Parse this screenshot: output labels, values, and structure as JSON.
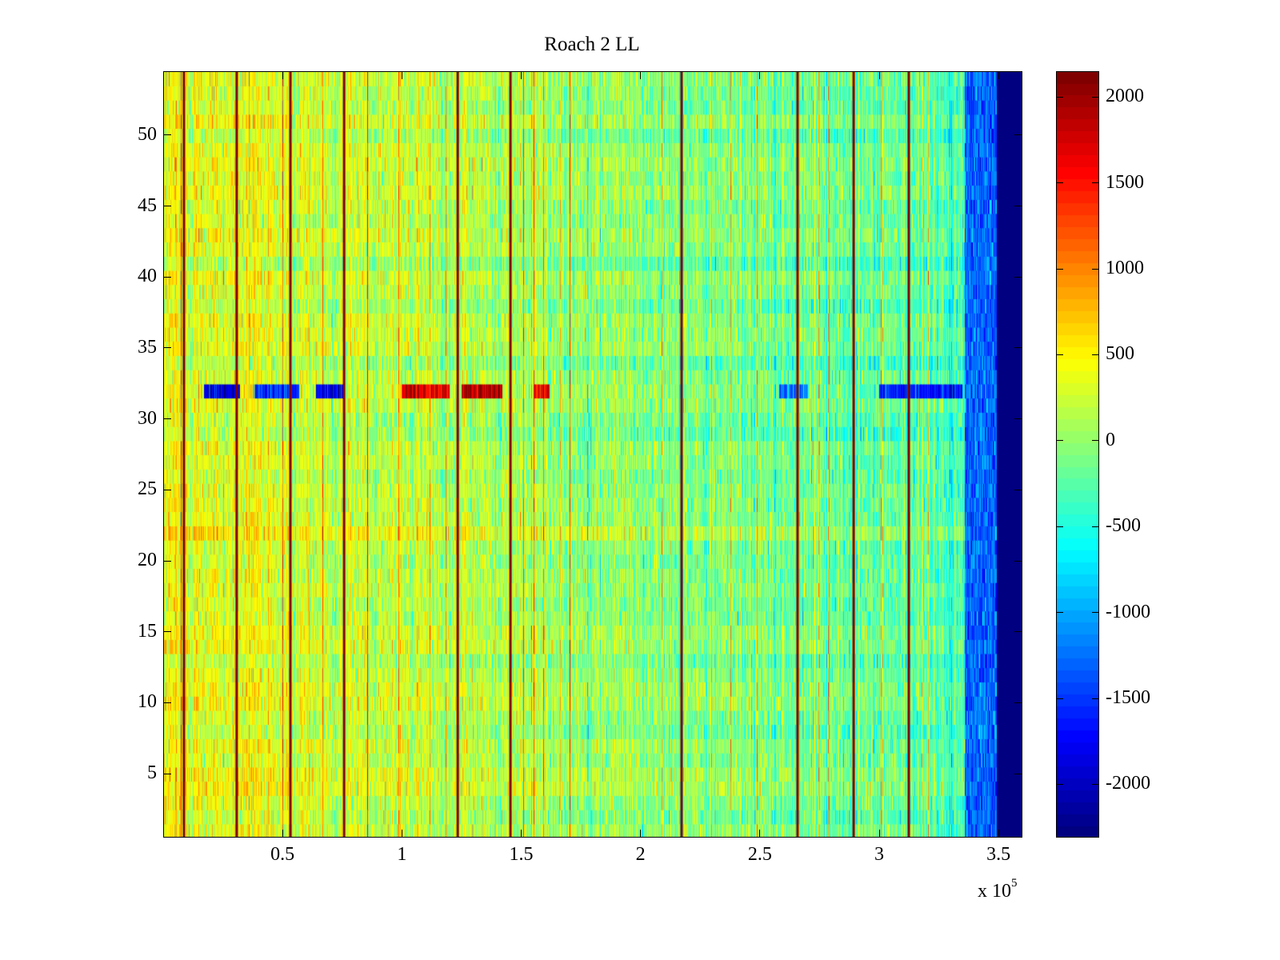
{
  "chart_data": {
    "type": "heatmap",
    "title": "Roach 2 LL",
    "xlabel": "",
    "ylabel": "",
    "x_multiplier_label": "x 10",
    "x_multiplier_exponent": "5",
    "xlim": [
      0,
      360000
    ],
    "ylim": [
      0.5,
      54.5
    ],
    "n_rows": 54,
    "data_x_end": 349000,
    "colormap": "jet",
    "clim": [
      -2310,
      2150
    ],
    "xticks": [
      50000,
      100000,
      150000,
      200000,
      250000,
      300000,
      350000
    ],
    "xtick_labels": [
      "0.5",
      "1",
      "1.5",
      "2",
      "2.5",
      "3",
      "3.5"
    ],
    "yticks": [
      5,
      10,
      15,
      20,
      25,
      30,
      35,
      40,
      45,
      50
    ],
    "ytick_labels": [
      "5",
      "10",
      "15",
      "20",
      "25",
      "30",
      "35",
      "40",
      "45",
      "50"
    ],
    "colorbar_ticks": [
      -2000,
      -1500,
      -1000,
      -500,
      0,
      500,
      1000,
      1500,
      2000
    ],
    "colorbar_tick_labels": [
      "-2000",
      "-1500",
      "-1000",
      "-500",
      "0",
      "500",
      "1000",
      "1500",
      "2000"
    ],
    "high_value_columns_x": [
      8700,
      30800,
      53300,
      75800,
      123400,
      145500,
      217200,
      265800,
      289300,
      312400
    ],
    "trend": "values ~ +400 at low x decreasing to ~ -300 near x=3.3e5; ~ -1300 for x 3.36e5-3.49e5; minimum beyond 3.49e5",
    "anomalous_row": {
      "y": 32,
      "segments": [
        {
          "x": [
            17000,
            32000
          ],
          "value": -1900
        },
        {
          "x": [
            38000,
            57000
          ],
          "value": -1500
        },
        {
          "x": [
            64000,
            76000
          ],
          "value": -1800
        },
        {
          "x": [
            100000,
            120000
          ],
          "value": 1700
        },
        {
          "x": [
            125000,
            142000
          ],
          "value": 1900
        },
        {
          "x": [
            155000,
            162000
          ],
          "value": 1600
        },
        {
          "x": [
            258000,
            270000
          ],
          "value": -1200
        },
        {
          "x": [
            300000,
            335000
          ],
          "value": -1700
        }
      ]
    },
    "legend": "colorbar-right",
    "grid": false
  }
}
